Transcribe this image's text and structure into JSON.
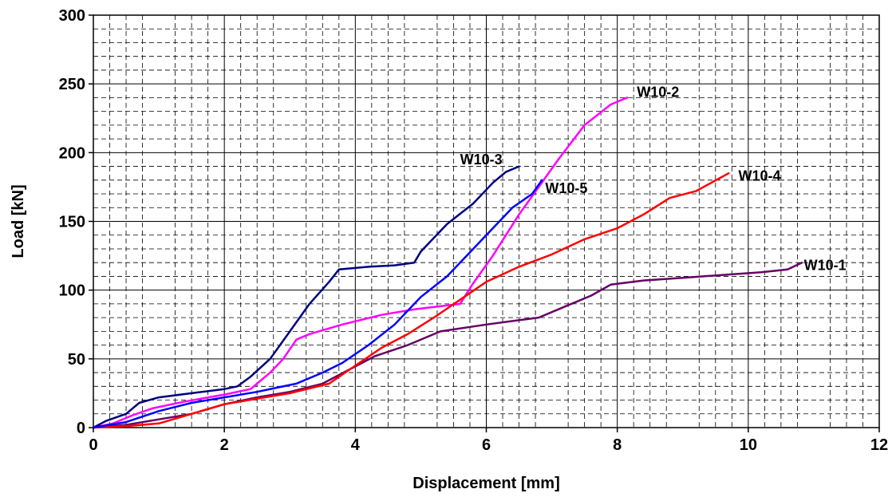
{
  "chart_data": {
    "type": "line",
    "title": "",
    "xlabel": "Displacement [mm]",
    "ylabel": "Load [kN]",
    "xlim": [
      0,
      12
    ],
    "ylim": [
      0,
      300
    ],
    "xticks": [
      0,
      2,
      4,
      6,
      8,
      10,
      12
    ],
    "yticks": [
      0,
      50,
      100,
      150,
      200,
      250,
      300
    ],
    "grid": {
      "major": true,
      "minor": true,
      "minor_style": "dashed"
    },
    "legend": "none (series labelled at line ends)",
    "series": [
      {
        "name": "W10-1",
        "color": "#660066",
        "points": [
          [
            0,
            0
          ],
          [
            0.5,
            2
          ],
          [
            1.0,
            6
          ],
          [
            1.5,
            10
          ],
          [
            2.0,
            17
          ],
          [
            2.5,
            22
          ],
          [
            3.0,
            26
          ],
          [
            3.5,
            32
          ],
          [
            3.9,
            42
          ],
          [
            4.3,
            52
          ],
          [
            4.8,
            60
          ],
          [
            5.3,
            70
          ],
          [
            6.0,
            75
          ],
          [
            6.8,
            80
          ],
          [
            7.2,
            88
          ],
          [
            7.6,
            96
          ],
          [
            7.9,
            104
          ],
          [
            8.4,
            107
          ],
          [
            9.0,
            109
          ],
          [
            9.6,
            111
          ],
          [
            10.2,
            113
          ],
          [
            10.6,
            115
          ],
          [
            10.82,
            120
          ]
        ]
      },
      {
        "name": "W10-2",
        "color": "#ff00ff",
        "points": [
          [
            0,
            0
          ],
          [
            0.3,
            3
          ],
          [
            0.6,
            9
          ],
          [
            0.9,
            14
          ],
          [
            1.4,
            19
          ],
          [
            2.0,
            24
          ],
          [
            2.4,
            28
          ],
          [
            2.7,
            40
          ],
          [
            2.9,
            50
          ],
          [
            3.1,
            64
          ],
          [
            3.3,
            68
          ],
          [
            3.8,
            75
          ],
          [
            4.4,
            82
          ],
          [
            4.9,
            86
          ],
          [
            5.6,
            90
          ],
          [
            5.8,
            105
          ],
          [
            6.1,
            125
          ],
          [
            6.5,
            155
          ],
          [
            6.8,
            175
          ],
          [
            7.1,
            195
          ],
          [
            7.5,
            220
          ],
          [
            7.9,
            235
          ],
          [
            8.15,
            240
          ]
        ]
      },
      {
        "name": "W10-3",
        "color": "#000080",
        "points": [
          [
            0,
            0
          ],
          [
            0.2,
            5
          ],
          [
            0.5,
            10
          ],
          [
            0.7,
            18
          ],
          [
            1.0,
            22
          ],
          [
            1.5,
            25
          ],
          [
            2.0,
            28
          ],
          [
            2.2,
            30
          ],
          [
            2.4,
            37
          ],
          [
            2.7,
            50
          ],
          [
            3.0,
            70
          ],
          [
            3.3,
            90
          ],
          [
            3.6,
            106
          ],
          [
            3.75,
            115
          ],
          [
            4.2,
            117
          ],
          [
            4.6,
            118
          ],
          [
            4.9,
            120
          ],
          [
            5.0,
            128
          ],
          [
            5.4,
            148
          ],
          [
            5.8,
            163
          ],
          [
            6.1,
            178
          ],
          [
            6.3,
            186
          ],
          [
            6.5,
            190
          ]
        ]
      },
      {
        "name": "W10-4",
        "color": "#ff0000",
        "points": [
          [
            0,
            0
          ],
          [
            0.5,
            1
          ],
          [
            1.0,
            3
          ],
          [
            1.5,
            10
          ],
          [
            2.0,
            17
          ],
          [
            2.5,
            21
          ],
          [
            3.0,
            25
          ],
          [
            3.6,
            32
          ],
          [
            4.0,
            45
          ],
          [
            4.4,
            58
          ],
          [
            4.8,
            68
          ],
          [
            5.2,
            80
          ],
          [
            5.6,
            93
          ],
          [
            6.0,
            106
          ],
          [
            6.5,
            117
          ],
          [
            7.0,
            126
          ],
          [
            7.5,
            137
          ],
          [
            8.0,
            145
          ],
          [
            8.4,
            155
          ],
          [
            8.8,
            167
          ],
          [
            9.2,
            172
          ],
          [
            9.7,
            185
          ]
        ]
      },
      {
        "name": "W10-5",
        "color": "#0000ff",
        "points": [
          [
            0,
            0
          ],
          [
            0.5,
            4
          ],
          [
            1.0,
            12
          ],
          [
            1.5,
            18
          ],
          [
            2.0,
            22
          ],
          [
            2.5,
            26
          ],
          [
            2.8,
            29
          ],
          [
            3.1,
            32
          ],
          [
            3.5,
            40
          ],
          [
            3.8,
            47
          ],
          [
            4.2,
            60
          ],
          [
            4.6,
            75
          ],
          [
            5.0,
            95
          ],
          [
            5.4,
            110
          ],
          [
            5.8,
            130
          ],
          [
            6.1,
            145
          ],
          [
            6.4,
            160
          ],
          [
            6.7,
            170
          ],
          [
            6.85,
            180
          ]
        ]
      }
    ],
    "annotations": [
      {
        "text": "W10-1",
        "x": 10.85,
        "y": 118
      },
      {
        "text": "W10-2",
        "x": 8.3,
        "y": 244
      },
      {
        "text": "W10-3",
        "x": 5.6,
        "y": 195
      },
      {
        "text": "W10-4",
        "x": 9.85,
        "y": 183
      },
      {
        "text": "W10-5",
        "x": 6.9,
        "y": 174
      }
    ]
  }
}
